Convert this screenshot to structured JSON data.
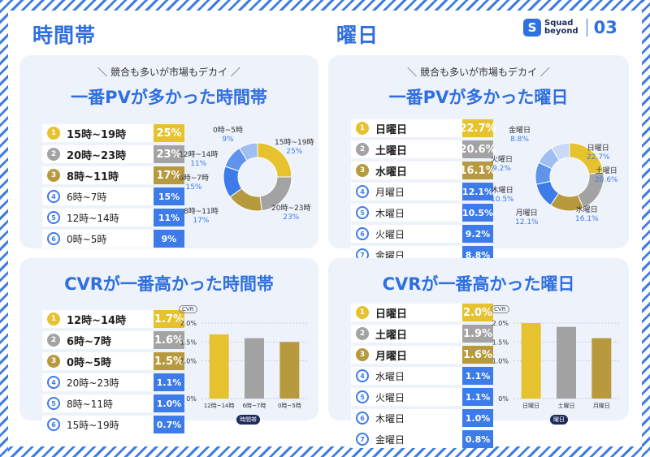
{
  "header": {
    "left_title": "時間帯",
    "right_title": "曜日",
    "logo_line1": "Squad",
    "logo_line2": "beyond",
    "page_num": "03"
  },
  "colors": {
    "gold": "#e6c22f",
    "silver": "#a3a3a3",
    "bronze": "#b89a3e",
    "blue": "#3d7be8",
    "light1": "#9fbff2",
    "light2": "#c9d9f7"
  },
  "panels": {
    "tl": {
      "sub": "＼ 競合も多いが市場もデカイ ／",
      "title": "一番PVが多かった時間帯",
      "rows": [
        {
          "rank": "1",
          "label": "15時~19時",
          "value": "25%"
        },
        {
          "rank": "2",
          "label": "20時~23時",
          "value": "23%"
        },
        {
          "rank": "3",
          "label": "8時~11時",
          "value": "17%"
        },
        {
          "rank": "4",
          "label": "6時~7時",
          "value": "15%"
        },
        {
          "rank": "5",
          "label": "12時~14時",
          "value": "11%"
        },
        {
          "rank": "6",
          "label": "0時~5時",
          "value": "9%"
        }
      ],
      "donut_labels": [
        {
          "name": "0時~5時",
          "pct": "9%"
        },
        {
          "name": "12時~14時",
          "pct": "11%"
        },
        {
          "name": "6時~7時",
          "pct": "15%"
        },
        {
          "name": "8時~11時",
          "pct": "17%"
        },
        {
          "name": "20時~23時",
          "pct": "23%"
        },
        {
          "name": "15時~19時",
          "pct": "25%"
        }
      ]
    },
    "tr": {
      "sub": "＼ 競合も多いが市場もデカイ ／",
      "title": "一番PVが多かった曜日",
      "rows": [
        {
          "rank": "1",
          "label": "日曜日",
          "value": "22.7%"
        },
        {
          "rank": "2",
          "label": "土曜日",
          "value": "20.6%"
        },
        {
          "rank": "3",
          "label": "水曜日",
          "value": "16.1%"
        },
        {
          "rank": "4",
          "label": "月曜日",
          "value": "12.1%"
        },
        {
          "rank": "5",
          "label": "木曜日",
          "value": "10.5%"
        },
        {
          "rank": "6",
          "label": "火曜日",
          "value": "9.2%"
        },
        {
          "rank": "7",
          "label": "金曜日",
          "value": "8.8%"
        }
      ],
      "donut_labels": [
        {
          "name": "金曜日",
          "pct": "8.8%"
        },
        {
          "name": "火曜日",
          "pct": "9.2%"
        },
        {
          "name": "木曜日",
          "pct": "10.5%"
        },
        {
          "name": "月曜日",
          "pct": "12.1%"
        },
        {
          "name": "水曜日",
          "pct": "16.1%"
        },
        {
          "name": "土曜日",
          "pct": "20.6%"
        },
        {
          "name": "日曜日",
          "pct": "22.7%"
        }
      ]
    },
    "bl": {
      "title": "CVRが一番高かった時間帯",
      "rows": [
        {
          "rank": "1",
          "label": "12時~14時",
          "value": "1.7%"
        },
        {
          "rank": "2",
          "label": "6時~7時",
          "value": "1.6%"
        },
        {
          "rank": "3",
          "label": "0時~5時",
          "value": "1.5%"
        },
        {
          "rank": "4",
          "label": "20時~23時",
          "value": "1.1%"
        },
        {
          "rank": "5",
          "label": "8時~11時",
          "value": "1.0%"
        },
        {
          "rank": "6",
          "label": "15時~19時",
          "value": "0.7%"
        }
      ]
    },
    "br": {
      "title": "CVRが一番高かった曜日",
      "rows": [
        {
          "rank": "1",
          "label": "日曜日",
          "value": "2.0%"
        },
        {
          "rank": "2",
          "label": "土曜日",
          "value": "1.9%"
        },
        {
          "rank": "3",
          "label": "月曜日",
          "value": "1.6%"
        },
        {
          "rank": "4",
          "label": "水曜日",
          "value": "1.1%"
        },
        {
          "rank": "5",
          "label": "火曜日",
          "value": "1.1%"
        },
        {
          "rank": "6",
          "label": "木曜日",
          "value": "1.0%"
        },
        {
          "rank": "7",
          "label": "金曜日",
          "value": "0.8%"
        }
      ]
    }
  },
  "chart_data": [
    {
      "type": "pie",
      "title": "",
      "categories": [
        "15時~19時",
        "20時~23時",
        "8時~11時",
        "6時~7時",
        "12時~14時",
        "0時~5時"
      ],
      "values": [
        25,
        23,
        17,
        15,
        11,
        9
      ]
    },
    {
      "type": "pie",
      "title": "",
      "categories": [
        "日曜日",
        "土曜日",
        "水曜日",
        "月曜日",
        "木曜日",
        "火曜日",
        "金曜日"
      ],
      "values": [
        22.7,
        20.6,
        16.1,
        12.1,
        10.5,
        9.2,
        8.8
      ]
    },
    {
      "type": "bar",
      "title": "",
      "ylabel": "CVR",
      "xlabel": "時間帯",
      "categories": [
        "12時~14時",
        "6時~7時",
        "0時~5時"
      ],
      "values": [
        1.7,
        1.6,
        1.5
      ],
      "ylim": [
        0,
        2.0
      ],
      "yticks": [
        "0%",
        "1.0%",
        "1.5%",
        "2.0%"
      ]
    },
    {
      "type": "bar",
      "title": "",
      "ylabel": "CVR",
      "xlabel": "曜日",
      "categories": [
        "日曜日",
        "土曜日",
        "月曜日"
      ],
      "values": [
        2.0,
        1.9,
        1.6
      ],
      "ylim": [
        0,
        2.0
      ],
      "yticks": [
        "0%",
        "1.0%",
        "1.5%",
        "2.0%"
      ]
    }
  ]
}
